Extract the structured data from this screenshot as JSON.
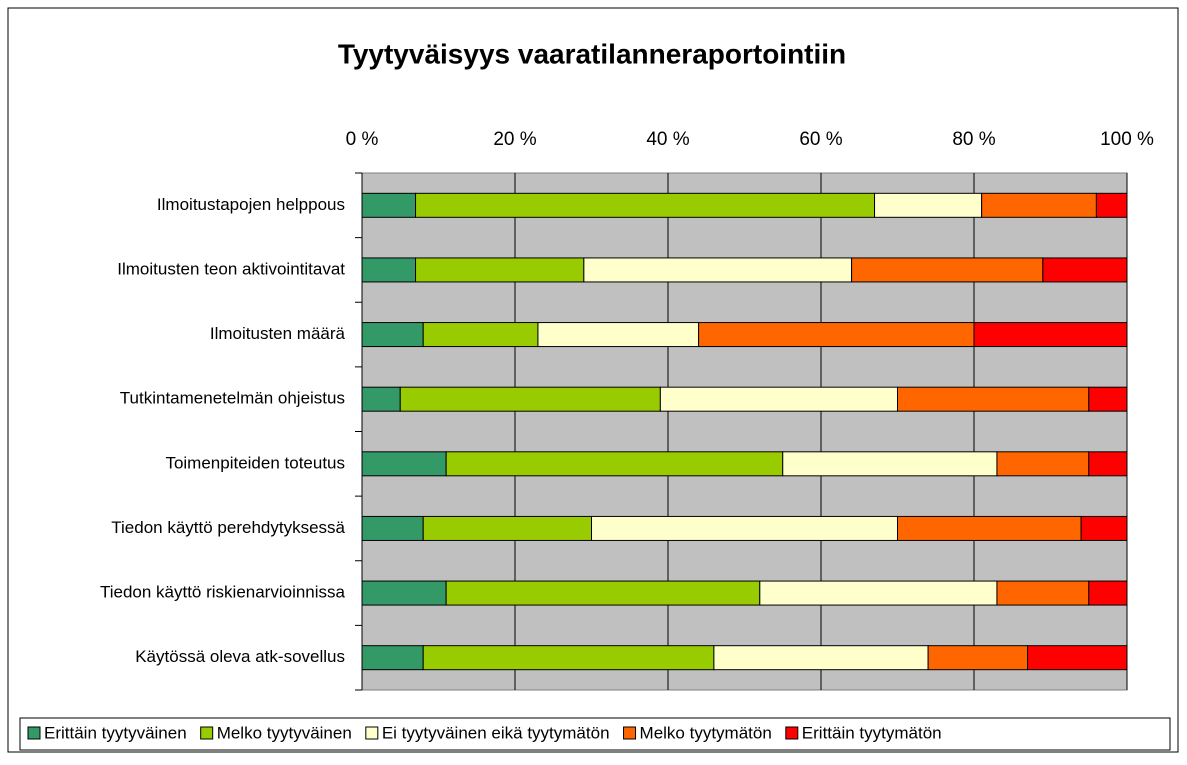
{
  "chart_data": {
    "type": "stacked_bar_horizontal",
    "title": "Tyytyväisyys vaaratilanneraportointiin",
    "categories": [
      "Ilmoitustapojen helppous",
      "Ilmoitusten teon aktivointitavat",
      "Ilmoitusten määrä",
      "Tutkintamenetelmän ohjeistus",
      "Toimenpiteiden toteutus",
      "Tiedon käyttö perehdytyksessä",
      "Tiedon käyttö riskienarvioinnissa",
      "Käytössä oleva atk-sovellus"
    ],
    "series": [
      {
        "name": "Erittäin tyytyväinen",
        "color": "#339966",
        "values": [
          7,
          7,
          8,
          5,
          11,
          8,
          11,
          8
        ]
      },
      {
        "name": "Melko tyytyväinen",
        "color": "#99cc00",
        "values": [
          60,
          22,
          15,
          34,
          44,
          22,
          41,
          38
        ]
      },
      {
        "name": "Ei tyytyväinen eikä tyytymätön",
        "color": "#ffffcc",
        "values": [
          14,
          35,
          21,
          31,
          28,
          40,
          31,
          28
        ]
      },
      {
        "name": "Melko tyytymätön",
        "color": "#ff6600",
        "values": [
          15,
          25,
          36,
          25,
          12,
          24,
          12,
          13
        ]
      },
      {
        "name": "Erittäin tyytymätön",
        "color": "#ff0000",
        "values": [
          4,
          11,
          20,
          5,
          5,
          6,
          5,
          13
        ]
      }
    ],
    "xlim": [
      0,
      100
    ],
    "xticks": [
      {
        "value": 0,
        "label": "0 %"
      },
      {
        "value": 20,
        "label": "20 %"
      },
      {
        "value": 40,
        "label": "40 %"
      },
      {
        "value": 60,
        "label": "60 %"
      },
      {
        "value": 80,
        "label": "80 %"
      },
      {
        "value": 100,
        "label": "100 %"
      }
    ],
    "grid": true,
    "legend": "bottom"
  }
}
